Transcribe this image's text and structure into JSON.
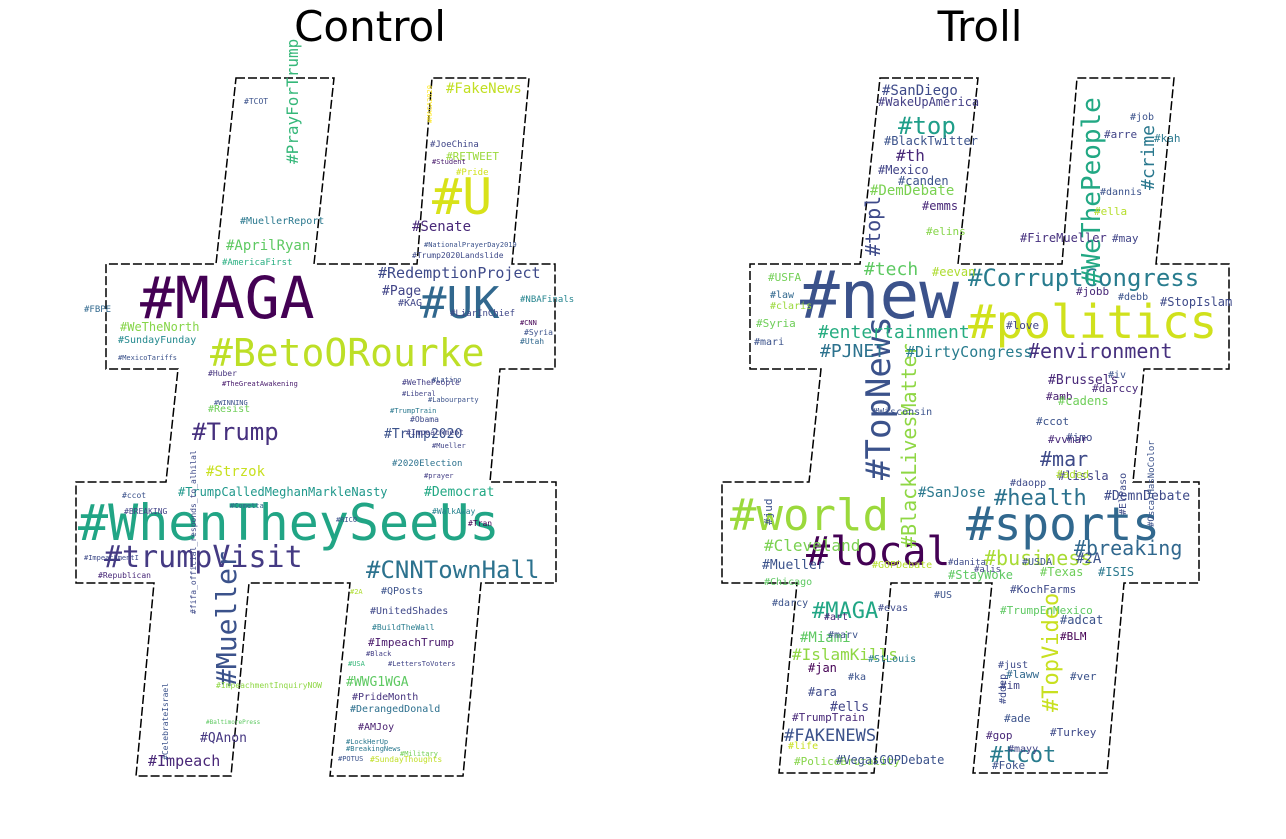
{
  "panels": [
    {
      "title": "Control",
      "words": [
        {
          "t": "#MAGA",
          "c": "#440154",
          "r": 0
        },
        {
          "t": "#WhenTheySeeUs",
          "c": "#21a585",
          "r": 0
        },
        {
          "t": "#BetoORourke",
          "c": "#bddf26",
          "r": 0
        },
        {
          "t": "#UK",
          "c": "#31688e",
          "r": 0
        },
        {
          "t": "#U",
          "c": "#d8e219",
          "r": 0
        },
        {
          "t": "#trumpVisit",
          "c": "#443a83",
          "r": 0
        },
        {
          "t": "#CNNTownHall",
          "c": "#2c728e",
          "r": 0
        },
        {
          "t": "#Trump",
          "c": "#46307e",
          "r": 0
        },
        {
          "t": "#Mueller",
          "c": "#3b528b",
          "r": 1
        },
        {
          "t": "#RedemptionProject",
          "c": "#3e4a89",
          "r": 0
        },
        {
          "t": "#PrayForTrump",
          "c": "#35b779",
          "r": 1
        },
        {
          "t": "#FakeNews",
          "c": "#c2df23",
          "r": 0
        },
        {
          "t": "#Senate",
          "c": "#482878",
          "r": 0
        },
        {
          "t": "#AprilRyan",
          "c": "#5ec962",
          "r": 0
        },
        {
          "t": "#Page",
          "c": "#414487",
          "r": 0
        },
        {
          "t": "#Strzok",
          "c": "#c8e020",
          "r": 0
        },
        {
          "t": "#Democrat",
          "c": "#22a884",
          "r": 0
        },
        {
          "t": "#TrumpCalledMeghanMarkleNasty",
          "c": "#1f988b",
          "r": 0
        },
        {
          "t": "#Trump2020",
          "c": "#3b528b",
          "r": 0
        },
        {
          "t": "#Impeach",
          "c": "#482677",
          "r": 0
        },
        {
          "t": "#QAnon",
          "c": "#453781",
          "r": 0
        },
        {
          "t": "#MuellerReport",
          "c": "#2a788e",
          "r": 0
        },
        {
          "t": "#SundayFunday",
          "c": "#23898e",
          "r": 0
        },
        {
          "t": "#WeTheNorth",
          "c": "#86d549",
          "r": 0
        },
        {
          "t": "#KAG",
          "c": "#404688",
          "r": 0
        },
        {
          "t": "#NBAFinals",
          "c": "#25848e",
          "r": 0
        },
        {
          "t": "#LiarInChief",
          "c": "#3f4788",
          "r": 0
        },
        {
          "t": "#RETWEET",
          "c": "#9bd93c",
          "r": 0
        },
        {
          "t": "#Pride",
          "c": "#d0e11c",
          "r": 0
        },
        {
          "t": "#JoeChina",
          "c": "#404688",
          "r": 0
        },
        {
          "t": "#AmericaFirst",
          "c": "#28ae80",
          "r": 0
        },
        {
          "t": "#Resist",
          "c": "#6ece58",
          "r": 0
        },
        {
          "t": "#FBPE",
          "c": "#31688e",
          "r": 0
        },
        {
          "t": "#ImpeachTrump",
          "c": "#48186a",
          "r": 0
        },
        {
          "t": "#WWG1WGA",
          "c": "#5ec962",
          "r": 0
        },
        {
          "t": "#PrideMonth",
          "c": "#46337e",
          "r": 0
        },
        {
          "t": "#DerangedDonald",
          "c": "#2d708e",
          "r": 0
        },
        {
          "t": "#AMJoy",
          "c": "#481f70",
          "r": 0
        },
        {
          "t": "#QPosts",
          "c": "#3b528b",
          "r": 0
        },
        {
          "t": "#UnitedShades",
          "c": "#3f4889",
          "r": 0
        },
        {
          "t": "#BuildTheWall",
          "c": "#287c8e",
          "r": 0
        },
        {
          "t": "#2020Election",
          "c": "#2c728e",
          "r": 0
        },
        {
          "t": "#Impeachment",
          "c": "#414487",
          "r": 0
        },
        {
          "t": "#WeThePeople",
          "c": "#433e85",
          "r": 0
        },
        {
          "t": "#Obama",
          "c": "#3e4989",
          "r": 0
        },
        {
          "t": "#WalkAway",
          "c": "#25838e",
          "r": 0
        },
        {
          "t": "#Tran",
          "c": "#440154",
          "r": 0
        },
        {
          "t": "#RICO",
          "c": "#3b528b",
          "r": 0
        },
        {
          "t": "#ccot",
          "c": "#3b528b",
          "r": 0
        },
        {
          "t": "#BREAKING",
          "c": "#414487",
          "r": 0
        },
        {
          "t": "#Republican",
          "c": "#482878",
          "r": 0
        },
        {
          "t": "#ImpeachmentInquiryNOW",
          "c": "#8fd744",
          "r": 0
        },
        {
          "t": "#CelebrateIsrael",
          "c": "#3b528b",
          "r": 1
        },
        {
          "t": "#fifa_official_responds_to_alhilal",
          "c": "#3e4a89",
          "r": 1
        },
        {
          "t": "#Utah",
          "c": "#31688e",
          "r": 0
        },
        {
          "t": "#Syria",
          "c": "#3b528b",
          "r": 0
        },
        {
          "t": "#CNN",
          "c": "#440154",
          "r": 0
        },
        {
          "t": "#Huber",
          "c": "#46337e",
          "r": 0
        },
        {
          "t": "#TheGreatAwakening",
          "c": "#481a6c",
          "r": 0
        },
        {
          "t": "#MexicoTariffs",
          "c": "#3b528b",
          "r": 0
        },
        {
          "t": "#Trump2020Landslide",
          "c": "#3e4a89",
          "r": 0
        },
        {
          "t": "#NationalPrayerDay2019",
          "c": "#3b528b",
          "r": 0
        },
        {
          "t": "#BreakingNews",
          "c": "#2a788e",
          "r": 0
        },
        {
          "t": "#SundayThoughts",
          "c": "#c0df25",
          "r": 0
        },
        {
          "t": "#POTUS",
          "c": "#3b528b",
          "r": 0
        },
        {
          "t": "#TCOT",
          "c": "#3b528b",
          "r": 0
        },
        {
          "t": "#Student",
          "c": "#481a6c",
          "r": 0
        },
        {
          "t": "#MAGA2020",
          "c": "#fde725",
          "r": 1
        },
        {
          "t": "#2A",
          "c": "#addc30",
          "r": 0
        },
        {
          "t": "#USA",
          "c": "#35b779",
          "r": 0
        },
        {
          "t": "#LettersToVoters",
          "c": "#414487",
          "r": 0
        },
        {
          "t": "#TrumpTrain",
          "c": "#2a788e",
          "r": 0
        },
        {
          "t": "#Latino",
          "c": "#3b528b",
          "r": 0
        },
        {
          "t": "#Labourparty",
          "c": "#3b528b",
          "r": 0
        },
        {
          "t": "#Mueller",
          "c": "#414487",
          "r": 0
        },
        {
          "t": "#BaltimorePress",
          "c": "#5ec962",
          "r": 0
        },
        {
          "t": "#ImpeachmentI",
          "c": "#3e4a89",
          "r": 0
        },
        {
          "t": "#Cometta",
          "c": "#31688e",
          "r": 0
        },
        {
          "t": "#prayer",
          "c": "#433e85",
          "r": 0
        },
        {
          "t": "#Black",
          "c": "#433e85",
          "r": 0
        },
        {
          "t": "#LockHerUp",
          "c": "#2a788e",
          "r": 0
        },
        {
          "t": "#Military",
          "c": "#73d056",
          "r": 0
        },
        {
          "t": "#WINNING",
          "c": "#3b528b",
          "r": 0
        },
        {
          "t": "#Liberal",
          "c": "#414487",
          "r": 0
        },
        {
          "t": "#NotMyPresident",
          "c": "#482878",
          "r": 0
        },
        {
          "t": "#email",
          "c": "#433e85",
          "r": 0
        }
      ]
    },
    {
      "title": "Troll",
      "words": [
        {
          "t": "#new",
          "c": "#3b528b",
          "r": 0
        },
        {
          "t": "#politics",
          "c": "#d0e11c",
          "r": 0
        },
        {
          "t": "#sports",
          "c": "#31688e",
          "r": 0
        },
        {
          "t": "#world",
          "c": "#9bd93c",
          "r": 0
        },
        {
          "t": "#local",
          "c": "#440154",
          "r": 0
        },
        {
          "t": "#CorruptCongress",
          "c": "#287c8e",
          "r": 0
        },
        {
          "t": "#environment",
          "c": "#46307e",
          "r": 0
        },
        {
          "t": "#TopNews",
          "c": "#3b528b",
          "r": 1
        },
        {
          "t": "#BlackLivesMatter",
          "c": "#8fd744",
          "r": 1
        },
        {
          "t": "#entertainment",
          "c": "#27ad81",
          "r": 0
        },
        {
          "t": "#health",
          "c": "#2c728e",
          "r": 0
        },
        {
          "t": "#business",
          "c": "#a8db34",
          "r": 0
        },
        {
          "t": "#breaking",
          "c": "#31688e",
          "r": 0
        },
        {
          "t": "#MAGA",
          "c": "#21a685",
          "r": 0
        },
        {
          "t": "#WeThePeople",
          "c": "#22a884",
          "r": 1
        },
        {
          "t": "#crime",
          "c": "#2a788e",
          "r": 1
        },
        {
          "t": "#top",
          "c": "#1f9e89",
          "r": 0
        },
        {
          "t": "#topl",
          "c": "#3e4a89",
          "r": 1
        },
        {
          "t": "#PJNET",
          "c": "#2c728e",
          "r": 0
        },
        {
          "t": "#tech",
          "c": "#5ec962",
          "r": 0
        },
        {
          "t": "#DirtyCongress",
          "c": "#287c8e",
          "r": 0
        },
        {
          "t": "#FAKENEWS",
          "c": "#3b528b",
          "r": 0
        },
        {
          "t": "#tcot",
          "c": "#287c8e",
          "r": 0
        },
        {
          "t": "#TopVideo",
          "c": "#c8e020",
          "r": 1
        },
        {
          "t": "#mar",
          "c": "#3e4a89",
          "r": 0
        },
        {
          "t": "#Cleveland",
          "c": "#7ad151",
          "r": 0
        },
        {
          "t": "#Mueller",
          "c": "#3b528b",
          "r": 0
        },
        {
          "t": "#DemnDebate",
          "c": "#3e4a89",
          "r": 0
        },
        {
          "t": "#SanJose",
          "c": "#2a788e",
          "r": 0
        },
        {
          "t": "#Miami",
          "c": "#5ec962",
          "r": 0
        },
        {
          "t": "#IslamKills",
          "c": "#8fd744",
          "r": 0
        },
        {
          "t": "#SanDiego",
          "c": "#3e4a89",
          "r": 0
        },
        {
          "t": "#WakeUpAmerica",
          "c": "#433e85",
          "r": 0
        },
        {
          "t": "#BlackTwitter",
          "c": "#3b528b",
          "r": 0
        },
        {
          "t": "#th",
          "c": "#482878",
          "r": 0
        },
        {
          "t": "#DemDebate",
          "c": "#7ad151",
          "r": 0
        },
        {
          "t": "#Mexico",
          "c": "#414487",
          "r": 0
        },
        {
          "t": "#canden",
          "c": "#3b528b",
          "r": 0
        },
        {
          "t": "#emms",
          "c": "#482878",
          "r": 0
        },
        {
          "t": "#elins",
          "c": "#86d549",
          "r": 0
        },
        {
          "t": "#eevan",
          "c": "#addc30",
          "r": 0
        },
        {
          "t": "#love",
          "c": "#414487",
          "r": 0
        },
        {
          "t": "#jobb",
          "c": "#482878",
          "r": 0
        },
        {
          "t": "#debb",
          "c": "#3b528b",
          "r": 0
        },
        {
          "t": "#StopIslam",
          "c": "#3e4a89",
          "r": 0
        },
        {
          "t": "#USFA",
          "c": "#73d056",
          "r": 0
        },
        {
          "t": "#law",
          "c": "#31688e",
          "r": 0
        },
        {
          "t": "#claris",
          "c": "#9bd93c",
          "r": 0
        },
        {
          "t": "#Syria",
          "c": "#6ece58",
          "r": 0
        },
        {
          "t": "#mari",
          "c": "#3b528b",
          "r": 0
        },
        {
          "t": "#FireMueller",
          "c": "#46307e",
          "r": 0
        },
        {
          "t": "#may",
          "c": "#414487",
          "r": 0
        },
        {
          "t": "#ella",
          "c": "#b5de2b",
          "r": 0
        },
        {
          "t": "#dannis",
          "c": "#3b528b",
          "r": 0
        },
        {
          "t": "#kah",
          "c": "#2a788e",
          "r": 0
        },
        {
          "t": "#job",
          "c": "#3b528b",
          "r": 0
        },
        {
          "t": "#arre",
          "c": "#414487",
          "r": 0
        },
        {
          "t": "#Brussels",
          "c": "#482878",
          "r": 0
        },
        {
          "t": "#amb",
          "c": "#481f70",
          "r": 0
        },
        {
          "t": "#cadens",
          "c": "#6ece58",
          "r": 0
        },
        {
          "t": "#ccot",
          "c": "#3b528b",
          "r": 0
        },
        {
          "t": "#vvmar",
          "c": "#482878",
          "r": 0
        },
        {
          "t": "#imo",
          "c": "#3e4a89",
          "r": 0
        },
        {
          "t": "#lissla",
          "c": "#414487",
          "r": 0
        },
        {
          "t": "#darccy",
          "c": "#482878",
          "r": 0
        },
        {
          "t": "#iv",
          "c": "#3b528b",
          "r": 0
        },
        {
          "t": "#aded",
          "c": "#addc30",
          "r": 0
        },
        {
          "t": "#jud",
          "c": "#3b528b",
          "r": 1
        },
        {
          "t": "#Chicago",
          "c": "#5ec962",
          "r": 0
        },
        {
          "t": "#GOPDebate",
          "c": "#b5de2b",
          "r": 0
        },
        {
          "t": "#darcy",
          "c": "#3b528b",
          "r": 0
        },
        {
          "t": "#evas",
          "c": "#3e4a89",
          "r": 0
        },
        {
          "t": "#art",
          "c": "#482878",
          "r": 0
        },
        {
          "t": "#marv",
          "c": "#3b528b",
          "r": 0
        },
        {
          "t": "#StLouis",
          "c": "#2a788e",
          "r": 0
        },
        {
          "t": "#jan",
          "c": "#440154",
          "r": 0
        },
        {
          "t": "#ka",
          "c": "#3b528b",
          "r": 0
        },
        {
          "t": "#ara",
          "c": "#3e4a89",
          "r": 0
        },
        {
          "t": "#ells",
          "c": "#414487",
          "r": 0
        },
        {
          "t": "#TrumpTrain",
          "c": "#482878",
          "r": 0
        },
        {
          "t": "#life",
          "c": "#c8e020",
          "r": 0
        },
        {
          "t": "#PoliceBrutality",
          "c": "#86d549",
          "r": 0
        },
        {
          "t": "#VegasGOPDebate",
          "c": "#3b528b",
          "r": 0
        },
        {
          "t": "#StayWoke",
          "c": "#5ec962",
          "r": 0
        },
        {
          "t": "#2A",
          "c": "#3b528b",
          "r": 0
        },
        {
          "t": "#Texas",
          "c": "#6ece58",
          "r": 0
        },
        {
          "t": "#ISIS",
          "c": "#2a788e",
          "r": 0
        },
        {
          "t": "#KochFarms",
          "c": "#3e4a89",
          "r": 0
        },
        {
          "t": "#TrumpEnMexico",
          "c": "#5ec962",
          "r": 0
        },
        {
          "t": "#adcat",
          "c": "#3b528b",
          "r": 0
        },
        {
          "t": "#BLM",
          "c": "#440154",
          "r": 0
        },
        {
          "t": "#just",
          "c": "#3e4a89",
          "r": 0
        },
        {
          "t": "#laww",
          "c": "#31688e",
          "r": 0
        },
        {
          "t": "#ver",
          "c": "#3b528b",
          "r": 0
        },
        {
          "t": "#im",
          "c": "#414487",
          "r": 0
        },
        {
          "t": "#ddep",
          "c": "#3e4a89",
          "r": 1
        },
        {
          "t": "#ade",
          "c": "#3b528b",
          "r": 0
        },
        {
          "t": "#gop",
          "c": "#482878",
          "r": 0
        },
        {
          "t": "#Turkey",
          "c": "#3e4a89",
          "r": 0
        },
        {
          "t": "#mayy",
          "c": "#414487",
          "r": 0
        },
        {
          "t": "#Foke",
          "c": "#3b528b",
          "r": 0
        },
        {
          "t": "#daopp",
          "c": "#3e4a89",
          "r": 0
        },
        {
          "t": "#Wisconsin",
          "c": "#3b528b",
          "r": 0
        },
        {
          "t": "#OscarHasNoColor",
          "c": "#3b528b",
          "r": 1
        },
        {
          "t": "#ElPaso",
          "c": "#3e4a89",
          "r": 1
        },
        {
          "t": "#USDA",
          "c": "#3b528b",
          "r": 0
        },
        {
          "t": "#danita",
          "c": "#3e4a89",
          "r": 0
        },
        {
          "t": "#alis",
          "c": "#414487",
          "r": 0
        },
        {
          "t": "#US",
          "c": "#3b528b",
          "r": 0
        },
        {
          "t": "#debes",
          "c": "#414487",
          "r": 0
        },
        {
          "t": "#iva",
          "c": "#2a788e",
          "r": 1
        }
      ]
    }
  ]
}
